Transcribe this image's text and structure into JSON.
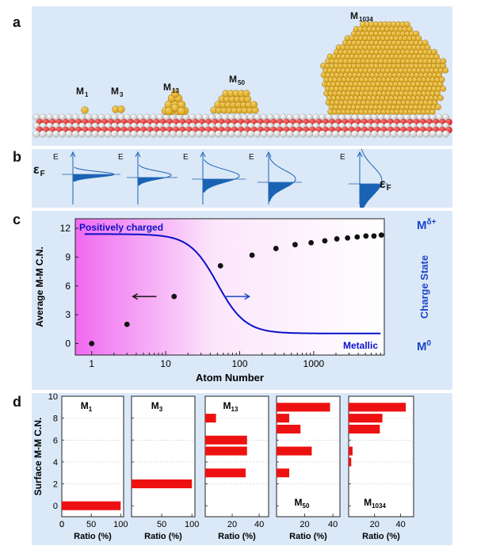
{
  "panels": {
    "a": "a",
    "b": "b",
    "c": "c",
    "d": "d"
  },
  "panel_a": {
    "clusters": [
      {
        "base": "M",
        "sub": "1"
      },
      {
        "base": "M",
        "sub": "3"
      },
      {
        "base": "M",
        "sub": "13"
      },
      {
        "base": "M",
        "sub": "50"
      },
      {
        "base": "M",
        "sub": "1034"
      }
    ],
    "colors": {
      "gold": "#d9a21a",
      "gold_light": "#f3d26a",
      "oxygen": "#d82020",
      "cation": "#f2f2f2"
    }
  },
  "panel_b": {
    "energy_label": "E",
    "fermi_base": "ε",
    "fermi_sub": "F",
    "fill_color": "#1a63b4",
    "line_color": "#1a63b4"
  },
  "chart_data": [
    {
      "type": "scatter",
      "xlabel": "Atom Number",
      "ylabel": "Average M-M C.N.",
      "ylabel_right": "Charge State",
      "xscale": "log",
      "xlim": [
        0.6,
        9000
      ],
      "ylim": [
        -1.2,
        13
      ],
      "x_ticks": [
        "1",
        "10",
        "100",
        "1000"
      ],
      "y_ticks": [
        "0",
        "3",
        "6",
        "9",
        "12"
      ],
      "right_top_label": {
        "base": "M",
        "sup": "δ+"
      },
      "right_bottom_label": {
        "base": "M",
        "sup": "0"
      },
      "annotation_top": "Positively charged",
      "annotation_bottom": "Metallic",
      "points": [
        {
          "x": 1,
          "y": 0
        },
        {
          "x": 3,
          "y": 2.0
        },
        {
          "x": 13,
          "y": 4.9
        },
        {
          "x": 55,
          "y": 8.1
        },
        {
          "x": 147,
          "y": 9.2
        },
        {
          "x": 309,
          "y": 9.9
        },
        {
          "x": 561,
          "y": 10.3
        },
        {
          "x": 923,
          "y": 10.5
        },
        {
          "x": 1415,
          "y": 10.7
        },
        {
          "x": 2057,
          "y": 10.9
        },
        {
          "x": 2869,
          "y": 11.0
        },
        {
          "x": 3871,
          "y": 11.1
        },
        {
          "x": 5083,
          "y": 11.2
        },
        {
          "x": 6525,
          "y": 11.2
        },
        {
          "x": 8217,
          "y": 11.3
        }
      ],
      "charge_curve": {
        "high": 11.4,
        "low": 1.05,
        "midpoint_x": 50,
        "steepness": 2.3
      },
      "colors": {
        "curve": "#0a10c8",
        "points": "#111111",
        "arrow_left": "#111111",
        "arrow_right": "#1a46c8",
        "gradient_start": "#f06af0",
        "gradient_end": "#ffffff",
        "right_label": "#1a46c8"
      }
    },
    {
      "type": "bar",
      "orientation": "horizontal",
      "ylabel": "Surface M-M C.N.",
      "y_ticks": [
        "0",
        "2",
        "4",
        "6",
        "8",
        "10"
      ],
      "ylim": [
        -1,
        10
      ],
      "bar_color": "#ee1111",
      "panels": [
        {
          "label": {
            "base": "M",
            "sub": "1"
          },
          "xlabel": "Ratio (%)",
          "x_ticks": [
            "0",
            "50",
            "100"
          ],
          "xlim": [
            0,
            105
          ],
          "bars": [
            {
              "cn": 0,
              "value": 100
            }
          ]
        },
        {
          "label": {
            "base": "M",
            "sub": "3"
          },
          "xlabel": "Ratio (%)",
          "x_ticks": [
            "50",
            "100"
          ],
          "xlim": [
            0,
            105
          ],
          "bars": [
            {
              "cn": 2,
              "value": 100
            }
          ]
        },
        {
          "label": {
            "base": "M",
            "sub": "13"
          },
          "xlabel": "Ratio (%)",
          "x_ticks": [
            "20",
            "40"
          ],
          "xlim": [
            0,
            47
          ],
          "bars": [
            {
              "cn": 3,
              "value": 30
            },
            {
              "cn": 5,
              "value": 31
            },
            {
              "cn": 6,
              "value": 31
            },
            {
              "cn": 8,
              "value": 8
            }
          ]
        },
        {
          "label": {
            "base": "M",
            "sub": "50"
          },
          "xlabel": "Ratio (%)",
          "x_ticks": [
            "20",
            "40"
          ],
          "xlim": [
            0,
            45
          ],
          "bars": [
            {
              "cn": 3,
              "value": 9
            },
            {
              "cn": 5,
              "value": 25
            },
            {
              "cn": 7,
              "value": 17
            },
            {
              "cn": 8,
              "value": 9
            },
            {
              "cn": 9,
              "value": 38
            }
          ]
        },
        {
          "label": {
            "base": "M",
            "sub": "1034"
          },
          "xlabel": "Ratio (%)",
          "x_ticks": [
            "20",
            "40"
          ],
          "xlim": [
            0,
            50
          ],
          "bars": [
            {
              "cn": 4,
              "value": 2
            },
            {
              "cn": 5,
              "value": 3
            },
            {
              "cn": 7,
              "value": 24
            },
            {
              "cn": 8,
              "value": 26
            },
            {
              "cn": 9,
              "value": 44
            }
          ]
        }
      ]
    }
  ]
}
